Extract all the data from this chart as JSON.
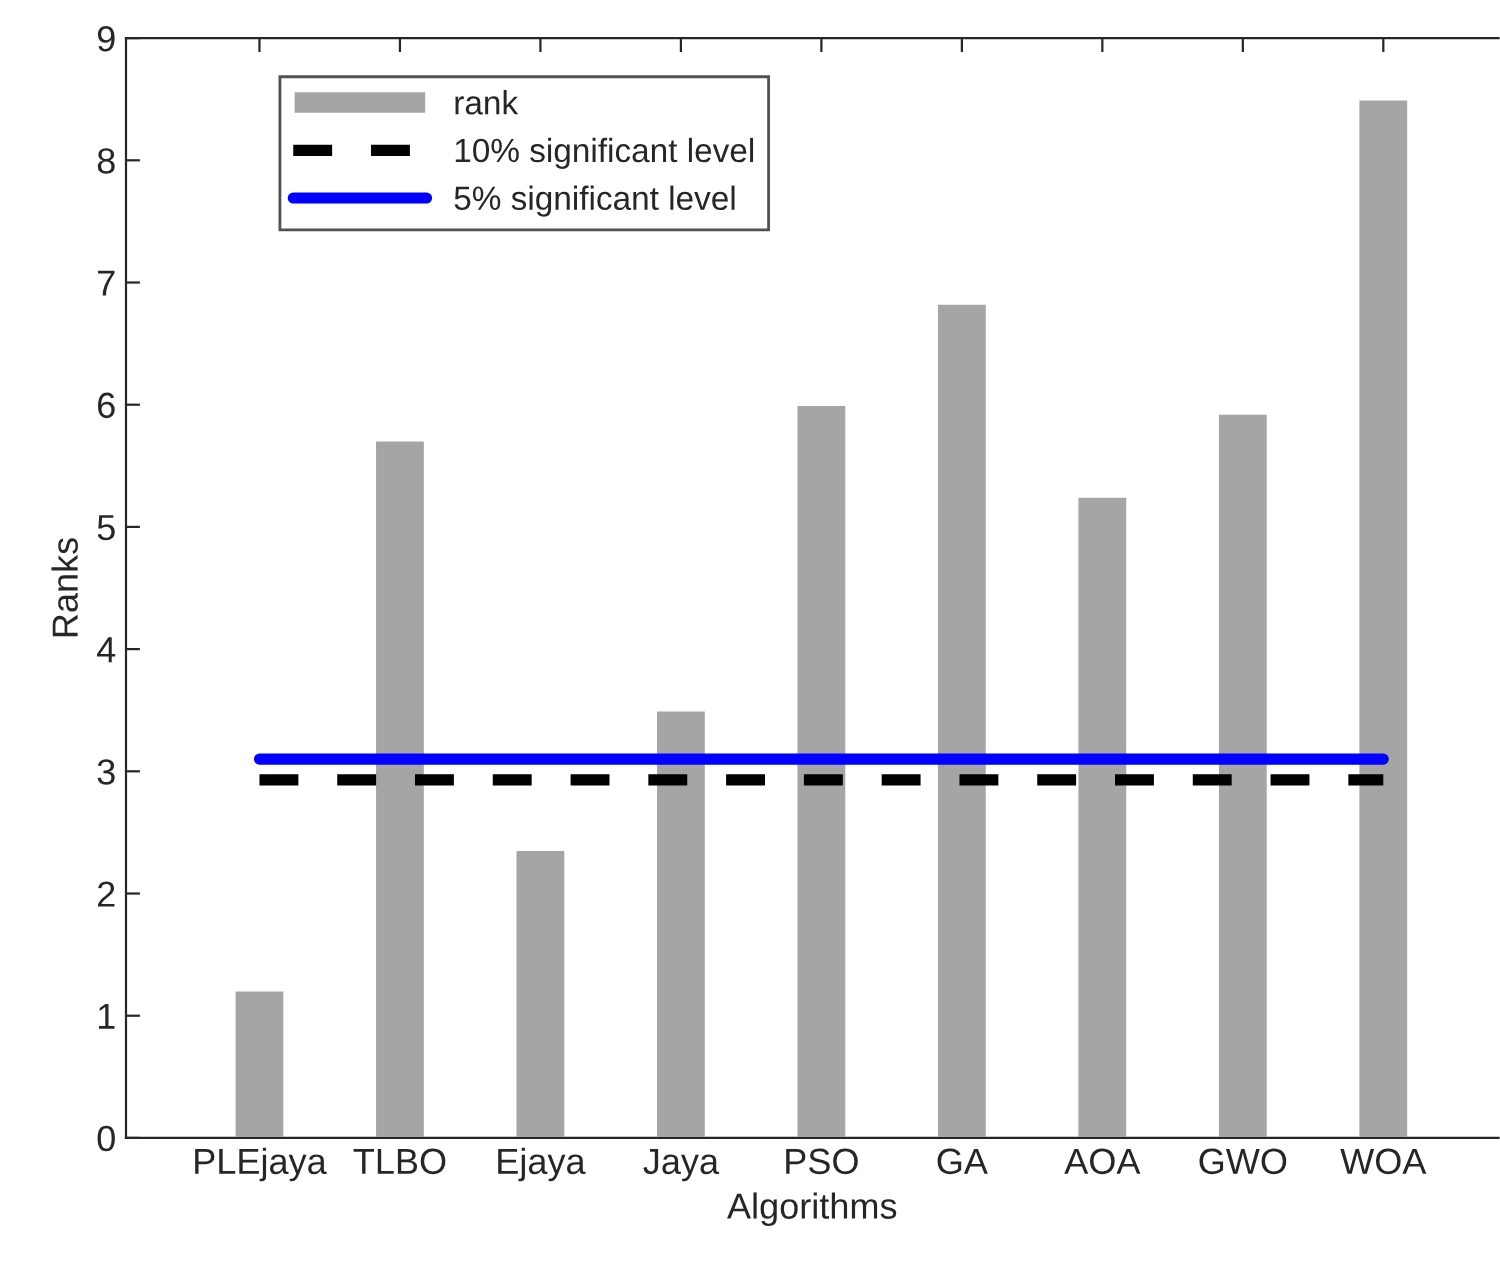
{
  "chart_data": {
    "type": "bar",
    "xlabel": "Algorithms",
    "ylabel": "Ranks",
    "categories": [
      "PLEjaya",
      "TLBO",
      "Ejaya",
      "Jaya",
      "PSO",
      "GA",
      "AOA",
      "GWO",
      "WOA"
    ],
    "series": [
      {
        "name": "rank",
        "color": "#a5a5a5",
        "values": [
          1.21,
          5.71,
          2.36,
          3.5,
          6.0,
          6.83,
          5.25,
          5.93,
          8.5
        ]
      },
      {
        "name": "10% significant level",
        "type": "line",
        "line_style": "dashed",
        "color": "#000000",
        "values": [
          2.93,
          2.93,
          2.93,
          2.93,
          2.93,
          2.93,
          2.93,
          2.93,
          2.93
        ]
      },
      {
        "name": "5% significant level",
        "type": "line",
        "line_style": "solid",
        "color": "#0000ff",
        "values": [
          3.1,
          3.1,
          3.1,
          3.1,
          3.1,
          3.1,
          3.1,
          3.1,
          3.1
        ]
      }
    ],
    "ylim": [
      0,
      9
    ],
    "yticks": [
      0,
      1,
      2,
      3,
      4,
      5,
      6,
      7,
      8,
      9
    ],
    "grid": false,
    "legend": "top left"
  }
}
